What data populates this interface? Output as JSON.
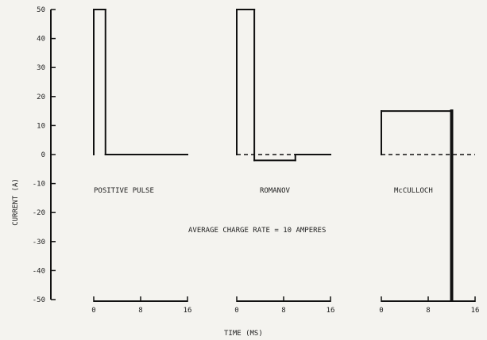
{
  "chart_data": {
    "type": "line",
    "ylabel": "CURRENT (A)",
    "xlabel": "TIME (MS)",
    "ylim": [
      -50,
      50
    ],
    "yticks": [
      50,
      40,
      30,
      20,
      10,
      0,
      -10,
      -20,
      -30,
      -40,
      -50
    ],
    "xlim": [
      0,
      16
    ],
    "xticks": [
      0,
      8,
      16
    ],
    "annotation": "AVERAGE CHARGE RATE = 10 AMPERES",
    "panels": [
      {
        "name": "POSITIVE PULSE",
        "points": [
          [
            0,
            0
          ],
          [
            0,
            50
          ],
          [
            2,
            50
          ],
          [
            2,
            0
          ],
          [
            16,
            0
          ]
        ],
        "zero_dashed": false
      },
      {
        "name": "ROMANOV",
        "points": [
          [
            0,
            0
          ],
          [
            0,
            50
          ],
          [
            3,
            50
          ],
          [
            3,
            -2
          ],
          [
            10,
            -2
          ],
          [
            10,
            0
          ],
          [
            16,
            0
          ]
        ],
        "zero_dashed": true
      },
      {
        "name": "McCULLOCH",
        "points": [
          [
            0,
            0
          ],
          [
            0,
            15
          ],
          [
            12,
            15
          ],
          [
            12,
            -50
          ]
        ],
        "zero_dashed": true
      }
    ]
  }
}
